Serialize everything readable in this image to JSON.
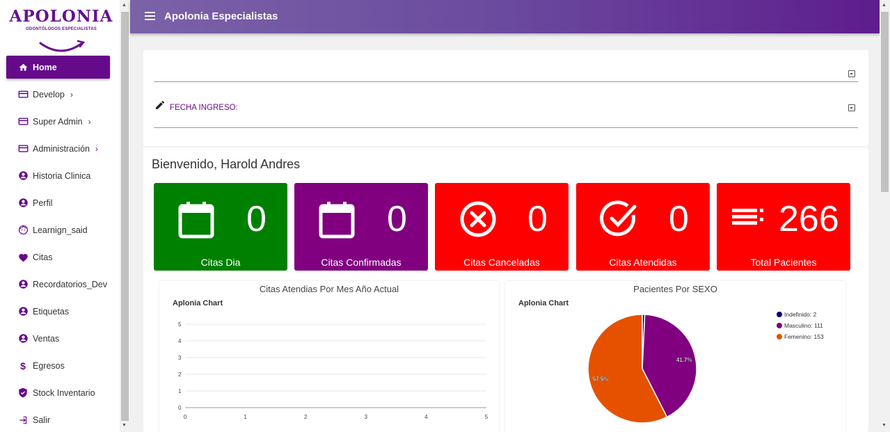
{
  "logo": {
    "title": "APOLONIA",
    "subtitle": "ODONTÓLOGOS ESPECIALISTAS"
  },
  "topbar": {
    "title": "Apolonia Especialistas"
  },
  "sidebar": {
    "items": [
      {
        "label": "Home",
        "icon": "home-icon"
      },
      {
        "label": "Develop",
        "icon": "card-icon"
      },
      {
        "label": "Super Admin",
        "icon": "card-icon"
      },
      {
        "label": "Administración",
        "icon": "card-icon"
      },
      {
        "label": "Historia Clinica",
        "icon": "account-icon"
      },
      {
        "label": "Perfil",
        "icon": "account-icon"
      },
      {
        "label": "Learnign_said",
        "icon": "face-icon"
      },
      {
        "label": "Citas",
        "icon": "heart-icon"
      },
      {
        "label": "Recordatorios_Dev",
        "icon": "account-icon"
      },
      {
        "label": "Etiquetas",
        "icon": "account-icon"
      },
      {
        "label": "Ventas",
        "icon": "account-icon"
      },
      {
        "label": "Egresos",
        "icon": "dollar-icon"
      },
      {
        "label": "Stock Inventario",
        "icon": "shield-icon"
      },
      {
        "label": "Salir",
        "icon": "exit-icon"
      }
    ]
  },
  "filters": {
    "fecha_ingreso_label": "FECHA INGRESO:"
  },
  "main": {
    "welcome": "Bienvenido, Harold Andres",
    "stats": [
      {
        "value": "0",
        "label": "Citas Dia",
        "color": "#008000",
        "icon": "calendar-icon"
      },
      {
        "value": "0",
        "label": "Citas Confirmadas",
        "color": "#800080",
        "icon": "calendar-icon"
      },
      {
        "value": "0",
        "label": "Citas Canceladas",
        "color": "#ff0000",
        "icon": "cancel-circle-icon"
      },
      {
        "value": "0",
        "label": "Citas Atendidas",
        "color": "#ff0000",
        "icon": "check-circle-icon"
      },
      {
        "value": "266",
        "label": "Total Pacientes",
        "color": "#ff0000",
        "icon": "list-icon"
      }
    ]
  },
  "chart_data": [
    {
      "type": "line",
      "title": "Citas Atendias Por Mes Año Actual",
      "subtitle": "Aplonia Chart",
      "x": [
        0,
        1,
        2,
        3,
        4,
        5
      ],
      "xlim": [
        0,
        5
      ],
      "ylim": [
        0,
        5
      ],
      "y_ticks": [
        0,
        1,
        2,
        3,
        4,
        5
      ],
      "series": [],
      "grid": true
    },
    {
      "type": "pie",
      "title": "Pacientes Por SEXO",
      "subtitle": "Aplonia Chart",
      "slices": [
        {
          "label": "Indefinido: 2",
          "value": 2,
          "color": "#000080",
          "pct_label": ""
        },
        {
          "label": "Masculino: 111",
          "value": 111,
          "color": "#800080",
          "pct_label": "41.7%"
        },
        {
          "label": "Femenino: 153",
          "value": 153,
          "color": "#e65100",
          "pct_label": "57.5%"
        }
      ],
      "legend": "top-right"
    }
  ]
}
